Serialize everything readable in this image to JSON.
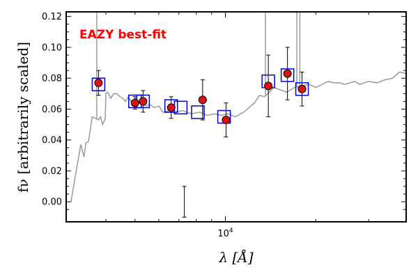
{
  "chart_data": {
    "type": "scatter",
    "xlabel": "λ [Å]",
    "ylabel": "fν [arbitrarily scaled]",
    "x_scale": "log",
    "xlim": [
      2950,
      40000
    ],
    "ylim": [
      -0.013,
      0.123
    ],
    "y_ticks": [
      0.0,
      0.02,
      0.04,
      0.06,
      0.08,
      0.1,
      0.12
    ],
    "y_tick_labels": [
      "0.00",
      "0.02",
      "0.04",
      "0.06",
      "0.08",
      "0.10",
      "0.12"
    ],
    "x_tick_labels": [
      {
        "value": 10000,
        "base": "10",
        "exp": "4"
      }
    ],
    "annotation": "EAZY best-fit",
    "annotation_color": "#ff0000",
    "colors": {
      "template": "#999999",
      "model": "#0000dd",
      "observed_fill": "#dd1111",
      "error": "#000000"
    },
    "template_sed": {
      "x": [
        3060,
        3200,
        3300,
        3380,
        3430,
        3500,
        3600,
        3700,
        3780,
        3840,
        3900,
        3980,
        4000,
        4060,
        4150,
        4250,
        4350,
        4450,
        4550,
        4650,
        4750,
        4850,
        4950,
        5050,
        5150,
        5250,
        5400,
        5600,
        5800,
        6000,
        6200,
        6500,
        6800,
        7200,
        7700,
        8200,
        8700,
        9200,
        9700,
        10200,
        10800,
        11500,
        12000,
        12500,
        13000,
        13500,
        14000,
        14500,
        15000,
        16000,
        17000,
        18000,
        19000,
        20000,
        21000,
        22000,
        23000,
        24000,
        25000,
        26000,
        27000,
        28000,
        30000,
        32000,
        34000,
        36000,
        38000,
        40000
      ],
      "y": [
        0.0,
        0.022,
        0.037,
        0.029,
        0.038,
        0.039,
        0.055,
        0.054,
        0.053,
        0.055,
        0.05,
        0.054,
        0.07,
        0.071,
        0.067,
        0.07,
        0.07,
        0.068,
        0.067,
        0.065,
        0.068,
        0.065,
        0.066,
        0.067,
        0.064,
        0.066,
        0.062,
        0.063,
        0.061,
        0.062,
        0.058,
        0.059,
        0.058,
        0.059,
        0.057,
        0.058,
        0.056,
        0.057,
        0.056,
        0.057,
        0.055,
        0.058,
        0.061,
        0.064,
        0.069,
        0.068,
        0.071,
        0.074,
        0.073,
        0.071,
        0.074,
        0.075,
        0.076,
        0.074,
        0.076,
        0.078,
        0.077,
        0.077,
        0.076,
        0.077,
        0.078,
        0.076,
        0.078,
        0.077,
        0.079,
        0.08,
        0.084,
        0.083
      ]
    },
    "template_spikes": [
      {
        "x": 3730,
        "y": 0.123
      },
      {
        "x": 8400,
        "y": 0.062
      },
      {
        "x": 13600,
        "y": 0.123
      },
      {
        "x": 17300,
        "y": 0.123
      },
      {
        "x": 17700,
        "y": 0.123
      }
    ],
    "template_absorption": [
      {
        "x": 7300,
        "y": -0.01
      }
    ],
    "model_photometry": {
      "x": [
        3780,
        5000,
        5320,
        6600,
        7100,
        8100,
        9900,
        13900,
        16100,
        18000
      ],
      "y": [
        0.076,
        0.065,
        0.065,
        0.062,
        0.061,
        0.058,
        0.055,
        0.078,
        0.082,
        0.073
      ]
    },
    "observed_photometry": {
      "x": [
        3780,
        5000,
        5320,
        6600,
        8400,
        10050,
        13900,
        16100,
        18000
      ],
      "y": [
        0.077,
        0.064,
        0.065,
        0.061,
        0.066,
        0.053,
        0.075,
        0.083,
        0.073
      ],
      "err": [
        0.008,
        0.004,
        0.007,
        0.007,
        0.013,
        0.011,
        0.02,
        0.017,
        0.011
      ]
    },
    "errorbar_only": {
      "x": [
        7300
      ],
      "y": [
        0.0
      ],
      "err": [
        0.01
      ]
    }
  }
}
